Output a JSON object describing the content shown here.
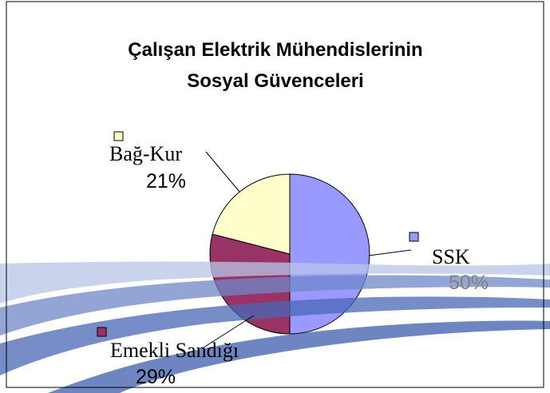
{
  "chart_data": {
    "type": "pie",
    "title": [
      "Çalışan Elektrik Mühendislerinin",
      "Sosyal Güvenceleri"
    ],
    "categories": [
      "SSK",
      "Emekli Sandığı",
      "Bağ-Kur"
    ],
    "values": [
      50,
      29,
      21
    ],
    "value_labels": [
      "50%",
      "29%",
      "21%"
    ],
    "colors": [
      "#9999ff",
      "#993366",
      "#ffffcc"
    ]
  }
}
